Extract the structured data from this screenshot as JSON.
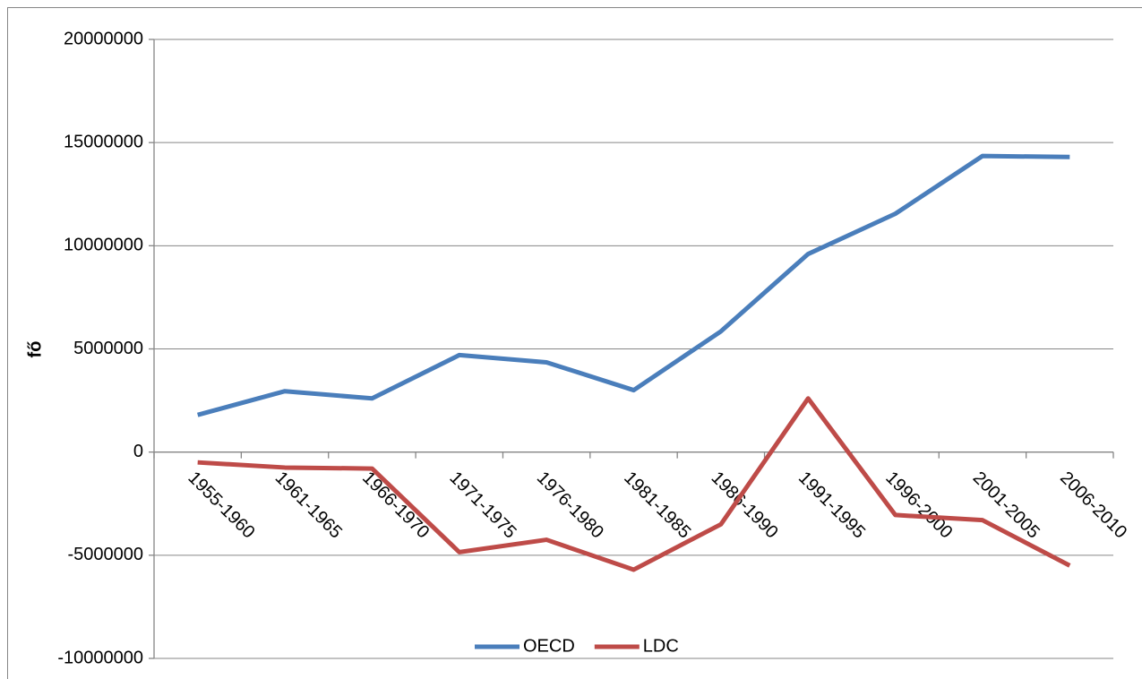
{
  "chart_data": {
    "type": "line",
    "ylabel": "fő",
    "categories": [
      "1955-1960",
      "1961-1965",
      "1966-1970",
      "1971-1975",
      "1976-1980",
      "1981-1985",
      "1986-1990",
      "1991-1995",
      "1996-2000",
      "2001-2005",
      "2006-2010"
    ],
    "series": [
      {
        "name": "OECD",
        "color": "#4a7ebb",
        "values": [
          1800000,
          2950000,
          2600000,
          4700000,
          4350000,
          3000000,
          5850000,
          9600000,
          11550000,
          14350000,
          14300000
        ]
      },
      {
        "name": "LDC",
        "color": "#be4b48",
        "values": [
          -500000,
          -750000,
          -800000,
          -4850000,
          -4250000,
          -5700000,
          -3500000,
          2600000,
          -3050000,
          -3300000,
          -5500000
        ]
      }
    ],
    "ylim": [
      -10000000,
      20000000
    ],
    "yticks": [
      -10000000,
      -5000000,
      0,
      5000000,
      10000000,
      15000000,
      20000000
    ],
    "grid": true,
    "legend": "bottom"
  }
}
